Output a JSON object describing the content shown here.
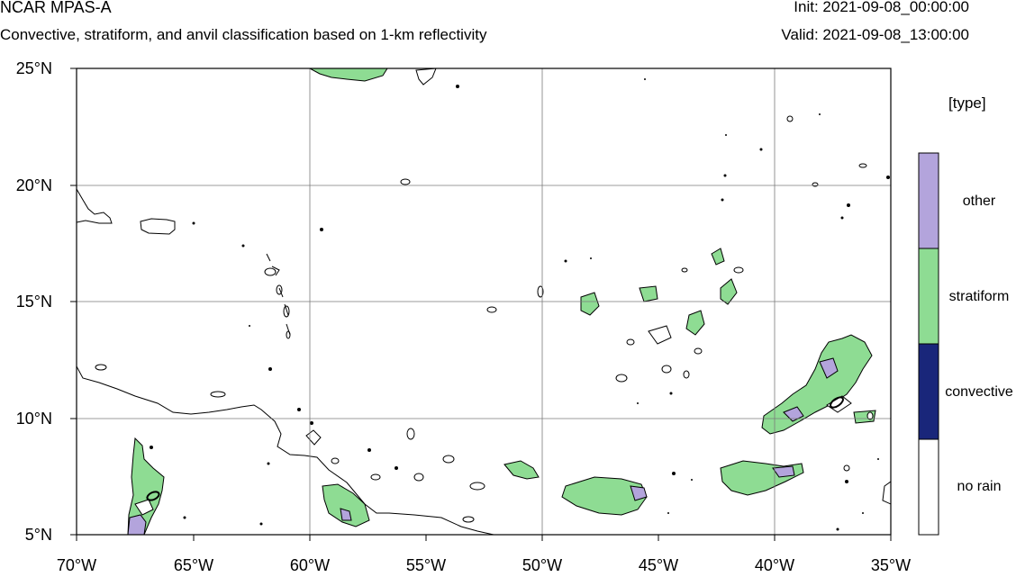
{
  "header": {
    "title": "NCAR MPAS-A",
    "subtitle": "Convective, stratiform, and anvil classification based on 1-km reflectivity",
    "init": "Init: 2021-09-08_00:00:00",
    "valid": "Valid: 2021-09-08_13:00:00"
  },
  "map": {
    "lat_labels": [
      "25°N",
      "20°N",
      "15°N",
      "10°N",
      "5°N"
    ],
    "lon_labels": [
      "70°W",
      "65°W",
      "60°W",
      "55°W",
      "50°W",
      "45°W",
      "40°W",
      "35°W"
    ],
    "lat_range": [
      5,
      25
    ],
    "lon_range": [
      -70,
      -35
    ],
    "gridlines": true
  },
  "legend": {
    "title": "[type]",
    "items": [
      {
        "label": "other",
        "color": "#b3a4dc"
      },
      {
        "label": "stratiform",
        "color": "#8edc93"
      },
      {
        "label": "convective",
        "color": "#19267a"
      },
      {
        "label": "no rain",
        "color": "#ffffff"
      }
    ]
  },
  "colors": {
    "stratiform": "#8edc93",
    "other": "#b3a4dc",
    "convective": "#19267a",
    "grid": "#7a7a7a"
  }
}
